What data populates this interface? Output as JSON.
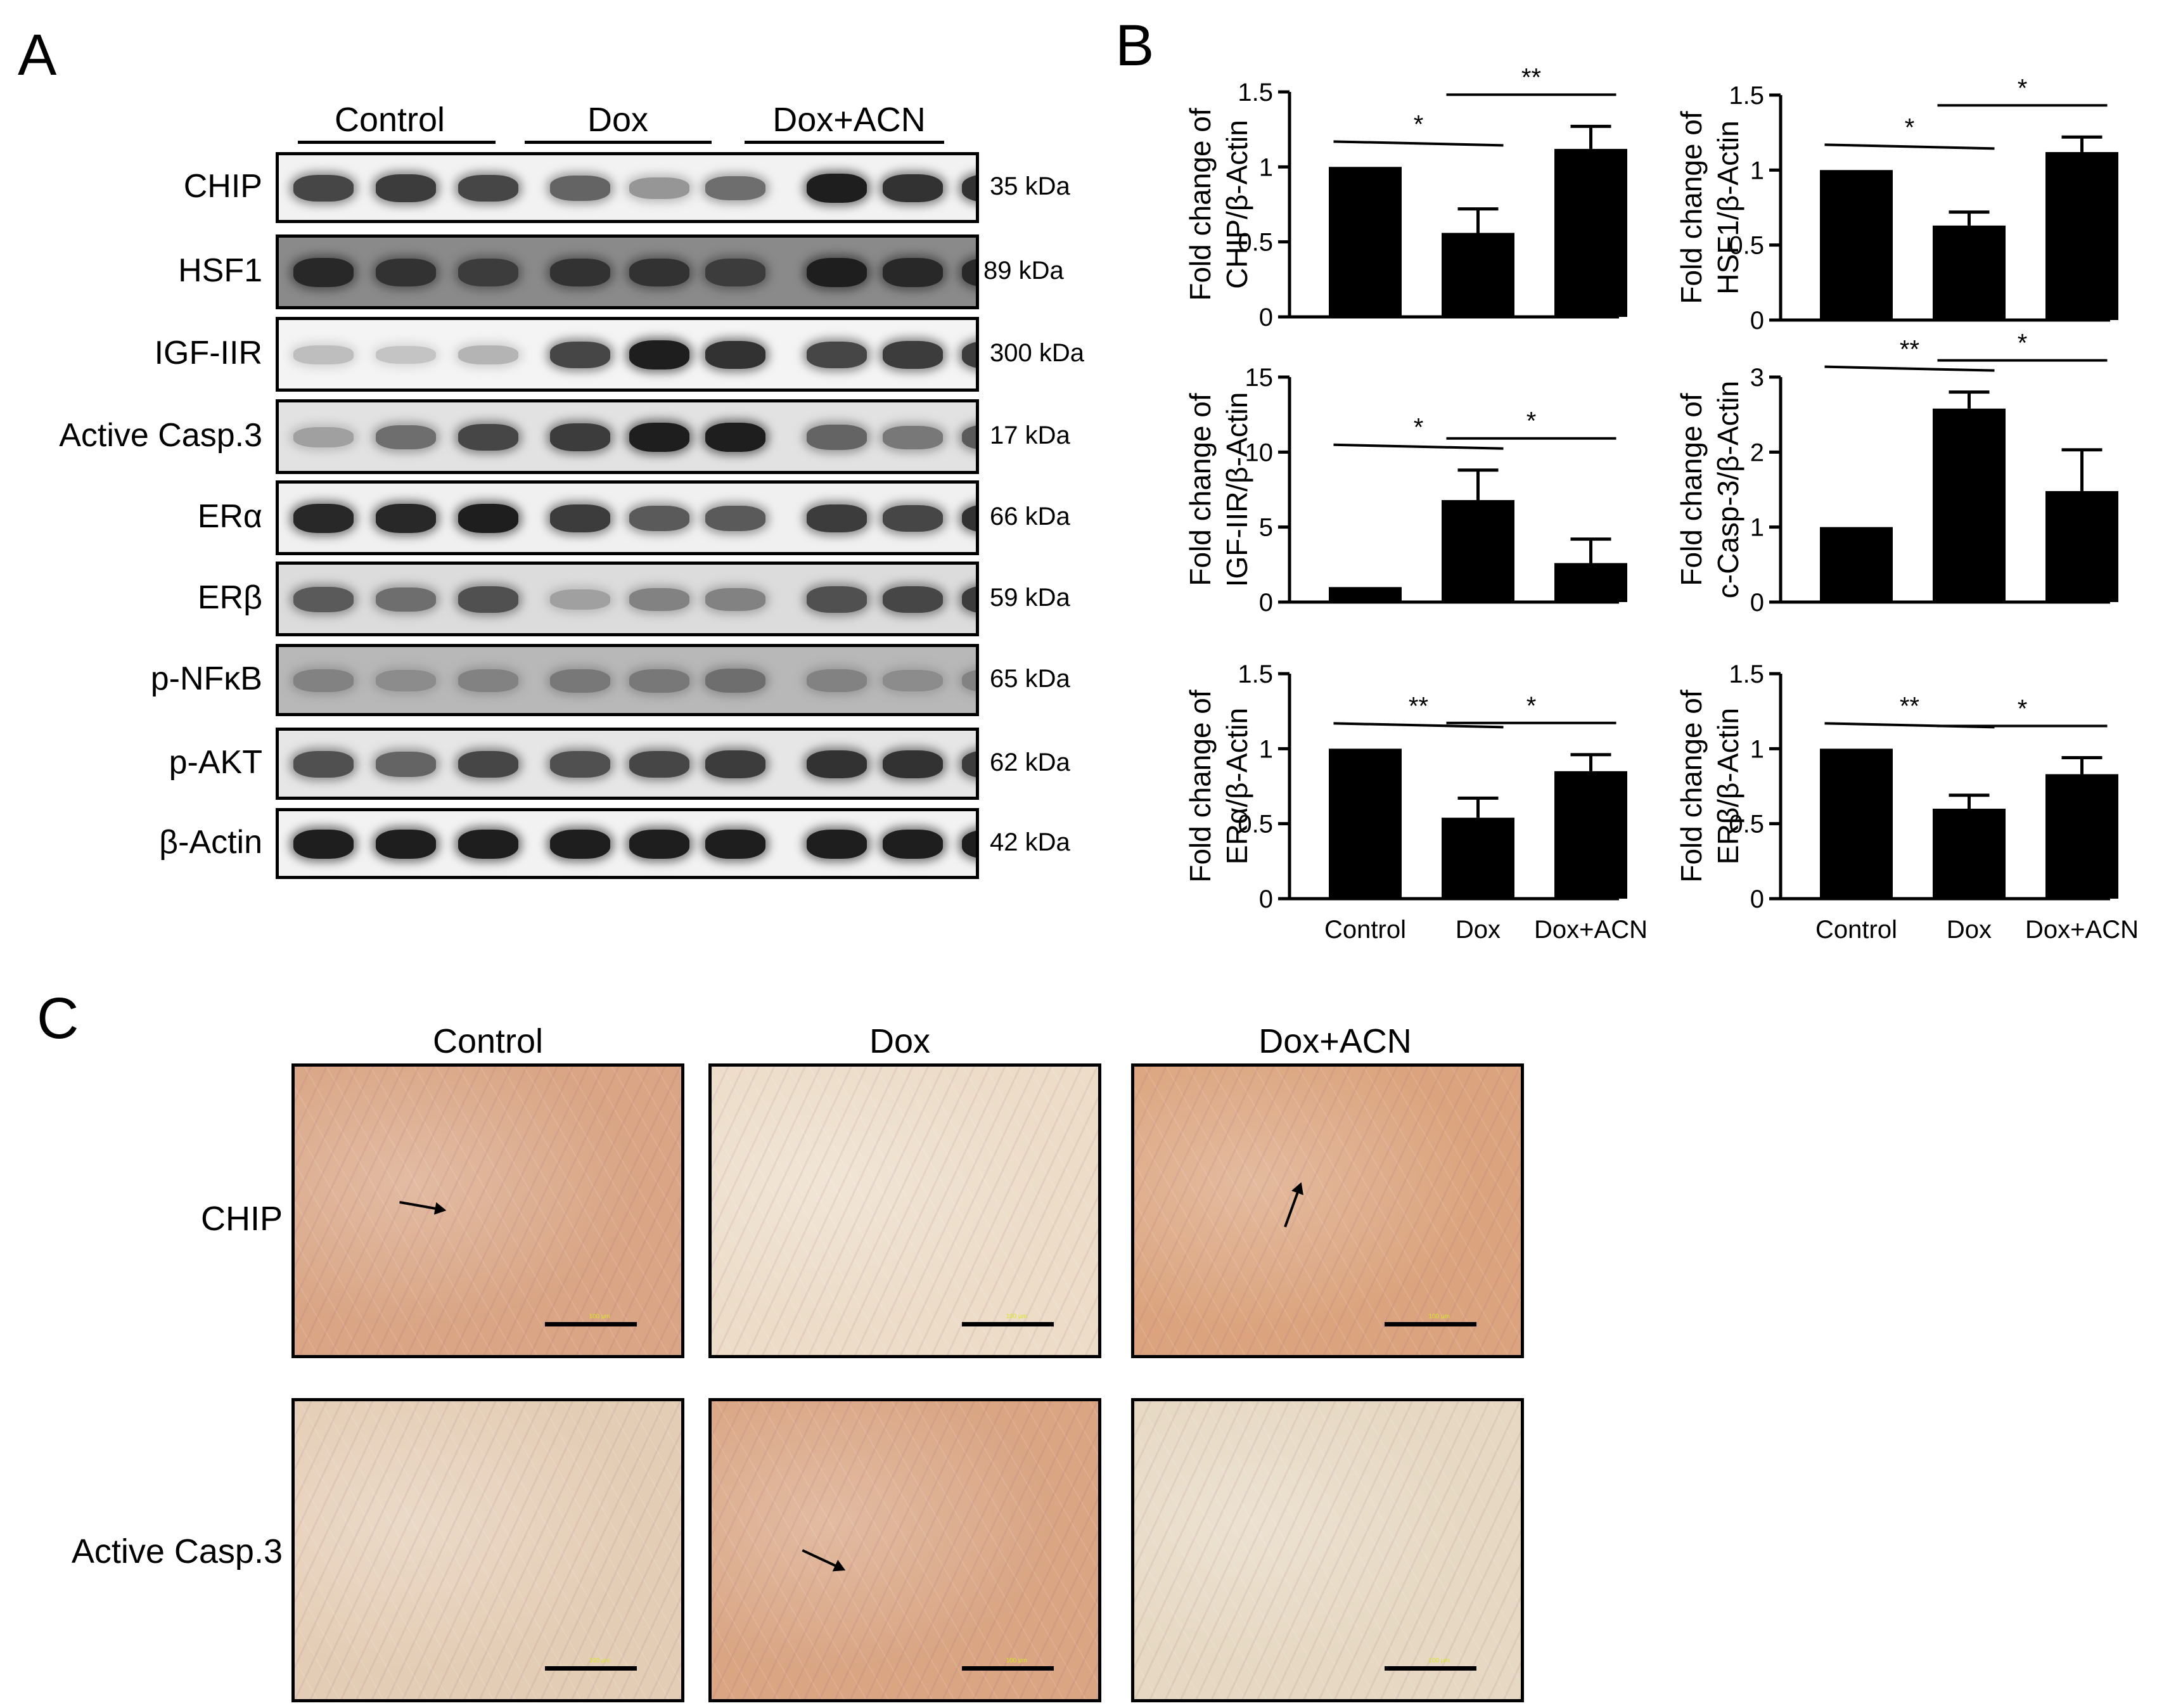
{
  "panels": {
    "a": "A",
    "b": "B",
    "c": "C"
  },
  "western": {
    "groups": [
      "Control",
      "Dox",
      "Dox+ACN"
    ],
    "blots": [
      {
        "protein": "CHIP",
        "kda": "35 kDa",
        "intensity": [
          0.75,
          0.8,
          0.75,
          0.6,
          0.35,
          0.55,
          0.95,
          0.85,
          0.85
        ],
        "bg": "#f2f2f2"
      },
      {
        "protein": "HSF1",
        "kda": "89 kDa",
        "intensity": [
          0.9,
          0.85,
          0.8,
          0.85,
          0.85,
          0.8,
          0.95,
          0.9,
          0.9
        ],
        "bg": "#8a8a8a"
      },
      {
        "protein": "IGF-IIR",
        "kda": "300 kDa",
        "intensity": [
          0.15,
          0.12,
          0.2,
          0.75,
          0.95,
          0.85,
          0.75,
          0.8,
          0.8
        ],
        "bg": "#f4f4f4"
      },
      {
        "protein": "Active Casp.3",
        "kda": "17 kDa",
        "intensity": [
          0.3,
          0.55,
          0.75,
          0.8,
          0.95,
          0.95,
          0.6,
          0.5,
          0.65
        ],
        "bg": "#e2e2e2"
      },
      {
        "protein": "ERα",
        "kda": "66 kDa",
        "intensity": [
          0.9,
          0.9,
          0.95,
          0.8,
          0.65,
          0.65,
          0.8,
          0.75,
          0.85
        ],
        "bg": "#f0f0f0"
      },
      {
        "protein": "ERβ",
        "kda": "59 kDa",
        "intensity": [
          0.65,
          0.55,
          0.7,
          0.3,
          0.45,
          0.45,
          0.7,
          0.75,
          0.8
        ],
        "bg": "#dcdcdc"
      },
      {
        "protein": "p-NFκB",
        "kda": "65 kDa",
        "intensity": [
          0.45,
          0.4,
          0.45,
          0.5,
          0.5,
          0.55,
          0.45,
          0.4,
          0.45
        ],
        "bg": "#b8b8b8"
      },
      {
        "protein": "p-AKT",
        "kda": "62 kDa",
        "intensity": [
          0.7,
          0.6,
          0.75,
          0.7,
          0.75,
          0.8,
          0.85,
          0.85,
          0.8
        ],
        "bg": "#e6e6e6"
      },
      {
        "protein": "β-Actin",
        "kda": "42 kDa",
        "intensity": [
          0.95,
          0.95,
          0.95,
          0.95,
          0.95,
          0.95,
          0.95,
          0.95,
          0.95
        ],
        "bg": "#f2f2f2"
      }
    ]
  },
  "chart_data": [
    {
      "type": "bar",
      "categories": [
        "Control",
        "Dox",
        "Dox+ACN"
      ],
      "values": [
        1.0,
        0.56,
        1.12
      ],
      "errors": [
        0,
        0.16,
        0.15
      ],
      "ylabel": [
        "Fold change of",
        "CHIP/β-Actin"
      ],
      "ylim": [
        0,
        1.5
      ],
      "yticks": [
        "0",
        "0.5",
        "1",
        "1.5"
      ],
      "significance": [
        {
          "pair": [
            0,
            1
          ],
          "label": "*"
        },
        {
          "pair": [
            1,
            2
          ],
          "label": "**"
        }
      ]
    },
    {
      "type": "bar",
      "categories": [
        "Control",
        "Dox",
        "Dox+ACN"
      ],
      "values": [
        1.0,
        0.63,
        1.12
      ],
      "errors": [
        0,
        0.09,
        0.1
      ],
      "ylabel": [
        "Fold change of",
        "HSF1/β-Actin"
      ],
      "ylim": [
        0,
        1.5
      ],
      "yticks": [
        "0",
        "0.5",
        "1",
        "1.5"
      ],
      "significance": [
        {
          "pair": [
            0,
            1
          ],
          "label": "*"
        },
        {
          "pair": [
            1,
            2
          ],
          "label": "*"
        }
      ]
    },
    {
      "type": "bar",
      "categories": [
        "Control",
        "Dox",
        "Dox+ACN"
      ],
      "values": [
        1.0,
        6.8,
        2.6
      ],
      "errors": [
        0,
        2.0,
        1.6
      ],
      "ylabel": [
        "Fold change of",
        "IGF-IIR/β-Actin"
      ],
      "ylim": [
        0,
        15
      ],
      "yticks": [
        "0",
        "5",
        "10",
        "15"
      ],
      "significance": [
        {
          "pair": [
            0,
            1
          ],
          "label": "*"
        },
        {
          "pair": [
            1,
            2
          ],
          "label": "*"
        }
      ]
    },
    {
      "type": "bar",
      "categories": [
        "Control",
        "Dox",
        "Dox+ACN"
      ],
      "values": [
        1.0,
        2.58,
        1.48
      ],
      "errors": [
        0,
        0.22,
        0.55
      ],
      "ylabel": [
        "Fold change of",
        "c-Casp-3/β-Actin"
      ],
      "ylim": [
        0,
        3
      ],
      "yticks": [
        "0",
        "1",
        "2",
        "3"
      ],
      "significance": [
        {
          "pair": [
            0,
            1
          ],
          "label": "**"
        },
        {
          "pair": [
            1,
            2
          ],
          "label": "*"
        }
      ]
    },
    {
      "type": "bar",
      "categories": [
        "Control",
        "Dox",
        "Dox+ACN"
      ],
      "values": [
        1.0,
        0.54,
        0.85
      ],
      "errors": [
        0,
        0.13,
        0.11
      ],
      "ylabel": [
        "Fold change of",
        "ERα/β-Actin"
      ],
      "ylim": [
        0,
        1.5
      ],
      "yticks": [
        "0",
        "0.5",
        "1",
        "1.5"
      ],
      "significance": [
        {
          "pair": [
            0,
            1
          ],
          "label": "**"
        },
        {
          "pair": [
            1,
            2
          ],
          "label": "*"
        }
      ],
      "xticks": [
        "Control",
        "Dox",
        "Dox+ACN"
      ]
    },
    {
      "type": "bar",
      "categories": [
        "Control",
        "Dox",
        "Dox+ACN"
      ],
      "values": [
        1.0,
        0.6,
        0.83
      ],
      "errors": [
        0,
        0.09,
        0.11
      ],
      "ylabel": [
        "Fold change of",
        "ERβ/β-Actin"
      ],
      "ylim": [
        0,
        1.5
      ],
      "yticks": [
        "0",
        "0.5",
        "1",
        "1.5"
      ],
      "significance": [
        {
          "pair": [
            0,
            1
          ],
          "label": "**"
        },
        {
          "pair": [
            1,
            2
          ],
          "label": "*"
        }
      ],
      "xticks": [
        "Control",
        "Dox",
        "Dox+ACN"
      ]
    }
  ],
  "ihc": {
    "columns": [
      "Control",
      "Dox",
      "Dox+ACN"
    ],
    "rows": [
      {
        "label": "CHIP",
        "colors": [
          "#d9a584",
          "#ecdcc8",
          "#dba47e"
        ],
        "arrows": [
          true,
          false,
          true
        ]
      },
      {
        "label": "Active Casp.3",
        "colors": [
          "#e4cdb5",
          "#d9a583",
          "#e6d8c2"
        ],
        "arrows": [
          false,
          true,
          false
        ]
      }
    ],
    "scale_text": "100 μm"
  }
}
